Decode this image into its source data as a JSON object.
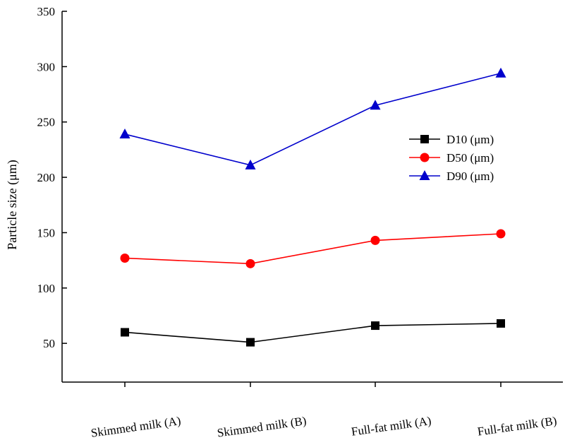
{
  "chart_data": {
    "type": "line",
    "categories": [
      "Skimmed milk (A)",
      "Skimmed milk (B)",
      "Full-fat milk (A)",
      "Full-fat milk (B)"
    ],
    "series": [
      {
        "name": "D10 (μm)",
        "values": [
          60,
          51,
          66,
          68
        ],
        "color": "#000000",
        "marker": "square"
      },
      {
        "name": "D50 (μm)",
        "values": [
          127,
          122,
          143,
          149
        ],
        "color": "#ff0000",
        "marker": "circle"
      },
      {
        "name": "D90 (μm)",
        "values": [
          239,
          211,
          265,
          294
        ],
        "color": "#0000cc",
        "marker": "triangle"
      }
    ],
    "title": "",
    "xlabel": "",
    "ylabel": "Particle size (μm)",
    "ylim": [
      15,
      350
    ],
    "yticks": [
      50,
      100,
      150,
      200,
      250,
      300,
      350
    ],
    "grid": false,
    "legend_position": "upper-right"
  }
}
